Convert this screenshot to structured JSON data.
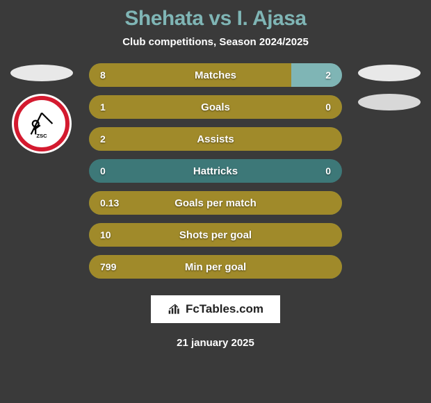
{
  "title": "Shehata vs I. Ajasa",
  "subtitle": "Club competitions, Season 2024/2025",
  "footer_brand": "FcTables.com",
  "footer_date": "21 january 2025",
  "colors": {
    "p1": "#a08a2a",
    "p2": "#7fb5b5",
    "neutral": "#3d7878",
    "bg": "#3a3a3a"
  },
  "left_badge": {
    "type": "zamalek"
  },
  "stats": [
    {
      "label": "Matches",
      "left_val": "8",
      "right_val": "2",
      "left_pct": 80,
      "right_pct": 20
    },
    {
      "label": "Goals",
      "left_val": "1",
      "right_val": "0",
      "left_pct": 100,
      "right_pct": 0
    },
    {
      "label": "Assists",
      "left_val": "2",
      "right_val": "",
      "left_pct": 100,
      "right_pct": 0
    },
    {
      "label": "Hattricks",
      "left_val": "0",
      "right_val": "0",
      "left_pct": 0,
      "right_pct": 0
    },
    {
      "label": "Goals per match",
      "left_val": "0.13",
      "right_val": "",
      "left_pct": 100,
      "right_pct": 0
    },
    {
      "label": "Shots per goal",
      "left_val": "10",
      "right_val": "",
      "left_pct": 100,
      "right_pct": 0
    },
    {
      "label": "Min per goal",
      "left_val": "799",
      "right_val": "",
      "left_pct": 100,
      "right_pct": 0
    }
  ]
}
